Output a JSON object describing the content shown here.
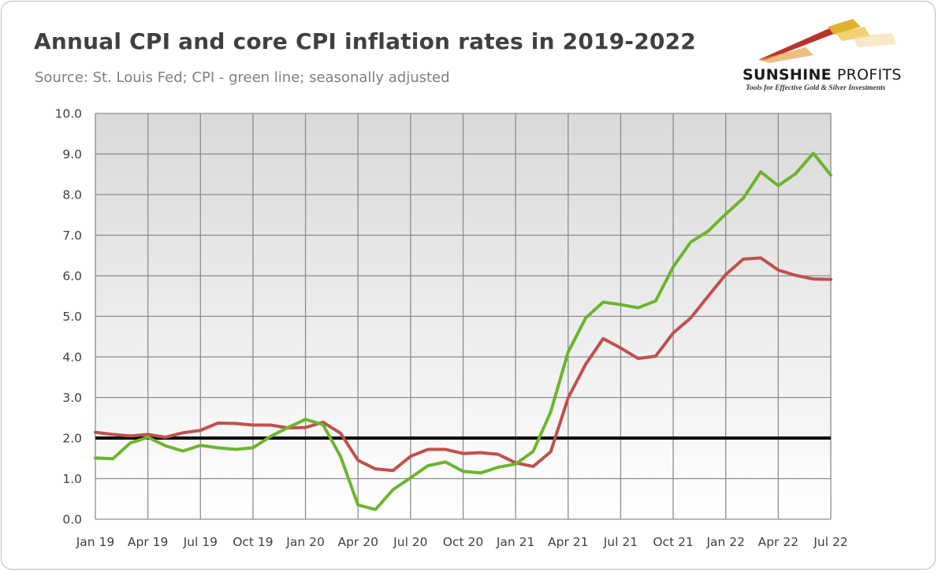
{
  "header": {
    "title": "Annual CPI and core CPI inflation rates in 2019-2022",
    "subtitle": "Source: St. Louis Fed; CPI - green line; seasonally adjusted"
  },
  "logo": {
    "name_bold": "SUNSHINE",
    "name_light": "PROFITS",
    "tagline": "Tools for Effective Gold & Silver Investments"
  },
  "colors": {
    "cpi": "#6cb52d",
    "core_cpi": "#c0504d",
    "target_line": "#000000",
    "grid": "#8c8c8c"
  },
  "chart_data": {
    "type": "line",
    "title": "Annual CPI and core CPI inflation rates in 2019-2022",
    "xlabel": "",
    "ylabel": "",
    "ylim": [
      0,
      10
    ],
    "y_ticks": [
      "0.0",
      "1.0",
      "2.0",
      "3.0",
      "4.0",
      "5.0",
      "6.0",
      "7.0",
      "8.0",
      "9.0",
      "10.0"
    ],
    "x_tick_labels": [
      "Jan 19",
      "Apr 19",
      "Jul 19",
      "Oct 19",
      "Jan 20",
      "Apr 20",
      "Jul 20",
      "Oct 20",
      "Jan 21",
      "Apr 21",
      "Jul 21",
      "Oct 21",
      "Jan 22",
      "Apr 22",
      "Jul 22"
    ],
    "grid": true,
    "legend": "none",
    "x": [
      "2019-01",
      "2019-02",
      "2019-03",
      "2019-04",
      "2019-05",
      "2019-06",
      "2019-07",
      "2019-08",
      "2019-09",
      "2019-10",
      "2019-11",
      "2019-12",
      "2020-01",
      "2020-02",
      "2020-03",
      "2020-04",
      "2020-05",
      "2020-06",
      "2020-07",
      "2020-08",
      "2020-09",
      "2020-10",
      "2020-11",
      "2020-12",
      "2021-01",
      "2021-02",
      "2021-03",
      "2021-04",
      "2021-05",
      "2021-06",
      "2021-07",
      "2021-08",
      "2021-09",
      "2021-10",
      "2021-11",
      "2021-12",
      "2022-01",
      "2022-02",
      "2022-03",
      "2022-04",
      "2022-05",
      "2022-06",
      "2022-07"
    ],
    "series": [
      {
        "name": "CPI",
        "values": [
          1.51,
          1.49,
          1.88,
          2.02,
          1.81,
          1.68,
          1.82,
          1.76,
          1.72,
          1.76,
          2.04,
          2.26,
          2.46,
          2.33,
          1.55,
          0.35,
          0.24,
          0.73,
          1.02,
          1.32,
          1.41,
          1.18,
          1.14,
          1.28,
          1.36,
          1.67,
          2.64,
          4.12,
          4.96,
          5.35,
          5.29,
          5.21,
          5.38,
          6.22,
          6.83,
          7.1,
          7.52,
          7.91,
          8.56,
          8.22,
          8.52,
          9.02,
          8.48
        ]
      },
      {
        "name": "Core CPI",
        "values": [
          2.14,
          2.09,
          2.05,
          2.09,
          2.02,
          2.13,
          2.19,
          2.37,
          2.36,
          2.32,
          2.32,
          2.25,
          2.26,
          2.39,
          2.12,
          1.45,
          1.24,
          1.2,
          1.55,
          1.72,
          1.72,
          1.62,
          1.64,
          1.6,
          1.39,
          1.3,
          1.66,
          2.99,
          3.82,
          4.45,
          4.22,
          3.96,
          4.02,
          4.59,
          4.96,
          5.5,
          6.03,
          6.41,
          6.44,
          6.14,
          6.01,
          5.92,
          5.91
        ]
      }
    ],
    "reference_line": {
      "y": 2.0
    }
  }
}
